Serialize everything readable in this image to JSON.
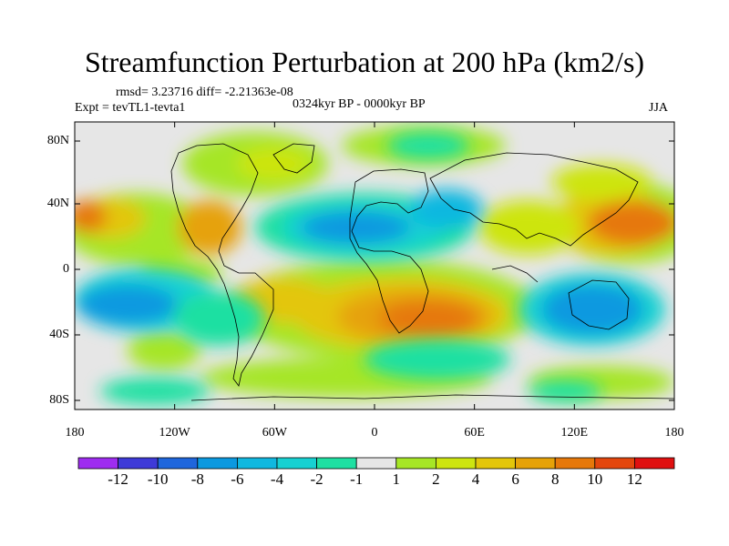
{
  "figure": {
    "title": "Streamfunction Perturbation at 200 hPa (km2/s)",
    "stats": "rmsd= 3.23716 diff= -2.21363e-08",
    "experiment": "Expt = tevTL1-tevta1",
    "period": "0324kyr BP - 0000kyr BP",
    "season": "JJA"
  },
  "axes": {
    "lat_ticks": [
      "80N",
      "40N",
      "0",
      "40S",
      "80S"
    ],
    "lon_ticks": [
      "180",
      "120W",
      "60W",
      "0",
      "60E",
      "120E",
      "180"
    ]
  },
  "colorbar": {
    "colors": [
      "#9e2cf0",
      "#3e3ad8",
      "#1f66dc",
      "#0b99e0",
      "#10b8e0",
      "#17d1d2",
      "#1fe0a2",
      "#e6e6e6",
      "#a6e626",
      "#cde510",
      "#e3c60a",
      "#e6a208",
      "#e6780a",
      "#e3460d",
      "#e01010"
    ],
    "labels": [
      "-12",
      "-10",
      "-8",
      "-6",
      "-4",
      "-2",
      "-1",
      "1",
      "2",
      "4",
      "6",
      "8",
      "10",
      "12"
    ]
  },
  "map_data": {
    "type": "filled-contour",
    "variable": "streamfunction perturbation",
    "level_hPa": 200,
    "units": "km2/s",
    "features": [
      {
        "region": "South Atlantic / southern Africa",
        "lon": 30,
        "lat": -27,
        "value": 12
      },
      {
        "region": "South Atlantic",
        "lon": 0,
        "lat": -30,
        "value": 6
      },
      {
        "region": "North Pacific east of Asia",
        "lon": 160,
        "lat": 27,
        "value": 9
      },
      {
        "region": "East Asia",
        "lon": 120,
        "lat": 32,
        "value": 5
      },
      {
        "region": "Central North Pacific",
        "lon": -160,
        "lat": 30,
        "value": 5
      },
      {
        "region": "Eastern Pacific near Mexico",
        "lon": -118,
        "lat": 20,
        "value": 7
      },
      {
        "region": "Greenland / Canada",
        "lon": -60,
        "lat": 65,
        "value": 3
      },
      {
        "region": "Western Siberia",
        "lon": 60,
        "lat": 62,
        "value": 3
      },
      {
        "region": "South Pacific",
        "lon": -120,
        "lat": -42,
        "value": 3
      },
      {
        "region": "South America",
        "lon": -60,
        "lat": -15,
        "value": 4
      },
      {
        "region": "North Atlantic / Mediterranean",
        "lon": -20,
        "lat": 30,
        "value": -6
      },
      {
        "region": "North Africa / Arabia",
        "lon": 40,
        "lat": 22,
        "value": -4
      },
      {
        "region": "Australia",
        "lon": 140,
        "lat": -20,
        "value": -5
      },
      {
        "region": "Tropical South Pacific",
        "lon": -170,
        "lat": -15,
        "value": -5
      },
      {
        "region": "Southern Ocean",
        "lon": 0,
        "lat": -55,
        "value": -3
      },
      {
        "region": "Arctic Russia",
        "lon": 20,
        "lat": 78,
        "value": -3
      }
    ]
  }
}
